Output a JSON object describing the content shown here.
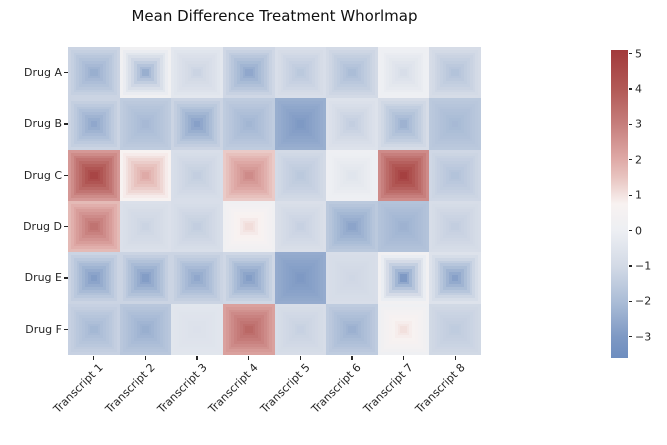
{
  "figure": {
    "background": "#ffffff",
    "text_color": "#262626",
    "title_color": "#111111"
  },
  "chart_data": {
    "type": "heatmap",
    "title": "Mean Difference Treatment Whorlmap",
    "rows": [
      "Drug A",
      "Drug B",
      "Drug C",
      "Drug D",
      "Drug E",
      "Drug F"
    ],
    "columns": [
      "Transcript 1",
      "Transcript 2",
      "Transcript 3",
      "Transcript 4",
      "Transcript 5",
      "Transcript 6",
      "Transcript 7",
      "Transcript 8"
    ],
    "cell_render": "whorl: concentric squares shading from edge value to center value",
    "cells": [
      [
        [
          -1.2,
          -2.4
        ],
        [
          0.2,
          -2.4
        ],
        [
          -0.4,
          -1.2
        ],
        [
          -1.1,
          -2.6
        ],
        [
          -0.8,
          -1.6
        ],
        [
          -1.0,
          -2.0
        ],
        [
          0.1,
          -0.8
        ],
        [
          -0.9,
          -1.8
        ]
      ],
      [
        [
          -1.2,
          -2.6
        ],
        [
          -1.5,
          -2.1
        ],
        [
          -1.2,
          -2.8
        ],
        [
          -1.5,
          -2.2
        ],
        [
          -2.4,
          -3.0
        ],
        [
          -0.6,
          -1.4
        ],
        [
          -0.9,
          -2.3
        ],
        [
          -1.6,
          -2.1
        ]
      ],
      [
        [
          2.4,
          4.7
        ],
        [
          0.7,
          2.0
        ],
        [
          -0.8,
          -1.4
        ],
        [
          1.4,
          2.7
        ],
        [
          -1.0,
          -1.6
        ],
        [
          0.1,
          -0.5
        ],
        [
          2.7,
          4.9
        ],
        [
          -1.1,
          -1.8
        ]
      ],
      [
        [
          1.7,
          3.3
        ],
        [
          -0.7,
          -1.2
        ],
        [
          -0.8,
          -1.4
        ],
        [
          0.2,
          1.1
        ],
        [
          -0.75,
          -1.3
        ],
        [
          -1.6,
          -2.7
        ],
        [
          -1.8,
          -2.3
        ],
        [
          -0.85,
          -1.4
        ]
      ],
      [
        [
          -1.2,
          -2.9
        ],
        [
          -1.2,
          -2.9
        ],
        [
          -1.2,
          -2.6
        ],
        [
          -1.1,
          -2.9
        ],
        [
          -2.5,
          -3.0
        ],
        [
          -0.8,
          -1.1
        ],
        [
          0.3,
          -3.0
        ],
        [
          -0.6,
          -2.8
        ]
      ],
      [
        [
          -1.3,
          -2.15
        ],
        [
          -1.65,
          -2.4
        ],
        [
          -0.45,
          -0.65
        ],
        [
          2.2,
          3.6
        ],
        [
          -0.85,
          -1.3
        ],
        [
          -1.5,
          -2.35
        ],
        [
          0.15,
          1.05
        ],
        [
          -1.05,
          -1.5
        ]
      ]
    ],
    "colormap_stops": [
      {
        "v": -3.6,
        "c": "#6d8dbf"
      },
      {
        "v": -3.0,
        "c": "#7e99c4"
      },
      {
        "v": -2.0,
        "c": "#abbdd7"
      },
      {
        "v": -1.0,
        "c": "#d3dae6"
      },
      {
        "v": 0.0,
        "c": "#edeff3"
      },
      {
        "v": 0.75,
        "c": "#f8f2f1"
      },
      {
        "v": 1.5,
        "c": "#e8c4c0"
      },
      {
        "v": 2.0,
        "c": "#dfaaa7"
      },
      {
        "v": 3.0,
        "c": "#c67e7c"
      },
      {
        "v": 4.0,
        "c": "#b25956"
      },
      {
        "v": 5.1,
        "c": "#a23a3b"
      }
    ],
    "colorbar": {
      "position": "right",
      "vmin": -3.6,
      "vmax": 5.1,
      "ticks": [
        {
          "value": 5,
          "label": "5"
        },
        {
          "value": 4,
          "label": "4"
        },
        {
          "value": 3,
          "label": "3"
        },
        {
          "value": 2,
          "label": "2"
        },
        {
          "value": 1,
          "label": "1"
        },
        {
          "value": 0,
          "label": "0"
        },
        {
          "value": -1,
          "label": "−1"
        },
        {
          "value": -2,
          "label": "−2"
        },
        {
          "value": -3,
          "label": "−3"
        }
      ]
    },
    "grid": false,
    "legend": false
  }
}
